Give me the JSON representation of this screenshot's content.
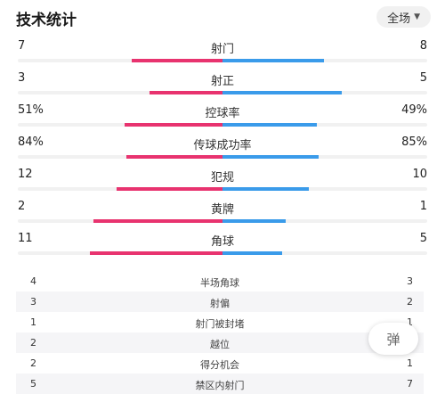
{
  "header": {
    "title": "技术统计",
    "scope": "全场",
    "scope_icon": "chevron-down-icon"
  },
  "colors": {
    "home": "#e8336f",
    "away": "#3a9bea"
  },
  "stats": [
    {
      "label": "射门",
      "home": "7",
      "away": "8",
      "home_share": 0.47,
      "away_share": 0.53
    },
    {
      "label": "射正",
      "home": "3",
      "away": "5",
      "home_share": 0.38,
      "away_share": 0.62
    },
    {
      "label": "控球率",
      "home": "51%",
      "away": "49%",
      "home_share": 0.51,
      "away_share": 0.49
    },
    {
      "label": "传球成功率",
      "home": "84%",
      "away": "85%",
      "home_share": 0.5,
      "away_share": 0.5
    },
    {
      "label": "犯规",
      "home": "12",
      "away": "10",
      "home_share": 0.55,
      "away_share": 0.45
    },
    {
      "label": "黄牌",
      "home": "2",
      "away": "1",
      "home_share": 0.67,
      "away_share": 0.33
    },
    {
      "label": "角球",
      "home": "11",
      "away": "5",
      "home_share": 0.69,
      "away_share": 0.31
    }
  ],
  "extra_stats": [
    {
      "label": "半场角球",
      "home": "4",
      "away": "3"
    },
    {
      "label": "射偏",
      "home": "3",
      "away": "2"
    },
    {
      "label": "射门被封堵",
      "home": "1",
      "away": "1"
    },
    {
      "label": "越位",
      "home": "2",
      "away": ""
    },
    {
      "label": "得分机会",
      "home": "2",
      "away": "1"
    },
    {
      "label": "禁区内射门",
      "home": "5",
      "away": "7"
    }
  ],
  "fab": {
    "label": "弹"
  }
}
